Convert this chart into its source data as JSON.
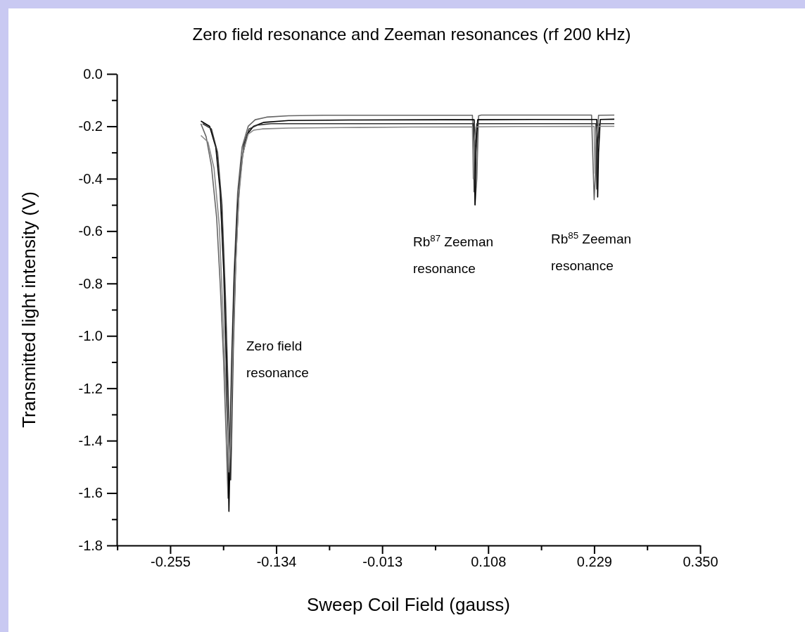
{
  "chart_data": {
    "type": "line",
    "title": "Zero field resonance and Zeeman resonances (rf 200 kHz)",
    "xlabel": "Sweep Coil Field (gauss)",
    "ylabel": "Transmitted light intensity (V)",
    "xlim": [
      -0.316,
      0.35
    ],
    "ylim": [
      -1.8,
      0
    ],
    "xticks": [
      {
        "value": -0.3155,
        "label": null
      },
      {
        "value": -0.255,
        "label": "-0.255"
      },
      {
        "value": -0.1945,
        "label": null
      },
      {
        "value": -0.134,
        "label": "-0.134"
      },
      {
        "value": -0.0735,
        "label": null
      },
      {
        "value": -0.013,
        "label": "-0.013"
      },
      {
        "value": 0.0475,
        "label": null
      },
      {
        "value": 0.108,
        "label": "0.108"
      },
      {
        "value": 0.1685,
        "label": null
      },
      {
        "value": 0.229,
        "label": "0.229"
      },
      {
        "value": 0.2895,
        "label": null
      },
      {
        "value": 0.35,
        "label": "0.350"
      }
    ],
    "yticks": [
      {
        "value": 0,
        "label": "0.0"
      },
      {
        "value": -0.1,
        "label": null
      },
      {
        "value": -0.2,
        "label": "-0.2"
      },
      {
        "value": -0.3,
        "label": null
      },
      {
        "value": -0.4,
        "label": "-0.4"
      },
      {
        "value": -0.5,
        "label": null
      },
      {
        "value": -0.6,
        "label": "-0.6"
      },
      {
        "value": -0.7,
        "label": null
      },
      {
        "value": -0.8,
        "label": "-0.8"
      },
      {
        "value": -0.9,
        "label": null
      },
      {
        "value": -1.0,
        "label": "-1.0"
      },
      {
        "value": -1.1,
        "label": null
      },
      {
        "value": -1.2,
        "label": "-1.2"
      },
      {
        "value": -1.3,
        "label": null
      },
      {
        "value": -1.4,
        "label": "-1.4"
      },
      {
        "value": -1.5,
        "label": null
      },
      {
        "value": -1.6,
        "label": "-1.6"
      },
      {
        "value": -1.7,
        "label": null
      },
      {
        "value": -1.8,
        "label": "-1.8"
      }
    ],
    "grid": false,
    "marker": "none",
    "line_style": "solid",
    "series": [
      {
        "color": "#666666",
        "x": [
          -0.22,
          -0.214,
          -0.208,
          -0.202,
          -0.198,
          -0.194,
          -0.191,
          -0.189,
          -0.187,
          -0.185,
          -0.182,
          -0.178,
          -0.173,
          -0.166,
          -0.158,
          -0.145,
          -0.12,
          -0.08,
          0.0,
          0.09,
          0.093,
          0.095,
          0.097,
          0.1,
          0.15,
          0.226,
          0.229,
          0.231,
          0.234,
          0.252
        ],
        "values": [
          -0.19,
          -0.24,
          -0.35,
          -0.55,
          -0.8,
          -1.1,
          -1.4,
          -1.62,
          -1.45,
          -1.1,
          -0.75,
          -0.45,
          -0.28,
          -0.2,
          -0.175,
          -0.165,
          -0.16,
          -0.158,
          -0.158,
          -0.158,
          -0.5,
          -0.4,
          -0.16,
          -0.157,
          -0.157,
          -0.157,
          -0.48,
          -0.35,
          -0.158,
          -0.157
        ]
      },
      {
        "color": "#000000",
        "x": [
          -0.22,
          -0.21,
          -0.203,
          -0.198,
          -0.194,
          -0.191,
          -0.189,
          -0.188,
          -0.187,
          -0.185,
          -0.182,
          -0.178,
          -0.173,
          -0.167,
          -0.16,
          -0.148,
          -0.12,
          -0.05,
          0.06,
          0.092,
          0.093,
          0.094,
          0.096,
          0.16,
          0.232,
          0.233,
          0.234,
          0.236,
          0.252
        ],
        "values": [
          -0.18,
          -0.2,
          -0.28,
          -0.45,
          -0.75,
          -1.1,
          -1.45,
          -1.67,
          -1.5,
          -1.15,
          -0.8,
          -0.5,
          -0.32,
          -0.23,
          -0.2,
          -0.185,
          -0.178,
          -0.176,
          -0.175,
          -0.175,
          -0.5,
          -0.3,
          -0.175,
          -0.174,
          -0.174,
          -0.47,
          -0.3,
          -0.174,
          -0.173
        ]
      },
      {
        "color": "#333333",
        "x": [
          -0.218,
          -0.208,
          -0.201,
          -0.196,
          -0.192,
          -0.189,
          -0.187,
          -0.186,
          -0.185,
          -0.183,
          -0.18,
          -0.176,
          -0.171,
          -0.165,
          -0.155,
          -0.14,
          -0.1,
          0.0,
          0.091,
          0.092,
          0.093,
          0.095,
          0.15,
          0.231,
          0.232,
          0.233,
          0.235,
          0.252
        ],
        "values": [
          -0.19,
          -0.21,
          -0.3,
          -0.5,
          -0.85,
          -1.2,
          -1.45,
          -1.55,
          -1.4,
          -1.05,
          -0.7,
          -0.42,
          -0.27,
          -0.21,
          -0.195,
          -0.19,
          -0.19,
          -0.19,
          -0.19,
          -0.45,
          -0.28,
          -0.19,
          -0.19,
          -0.19,
          -0.44,
          -0.27,
          -0.19,
          -0.19
        ]
      },
      {
        "color": "#888888",
        "x": [
          -0.22,
          -0.212,
          -0.205,
          -0.199,
          -0.195,
          -0.191,
          -0.188,
          -0.186,
          -0.184,
          -0.181,
          -0.177,
          -0.172,
          -0.166,
          -0.16,
          -0.15,
          -0.12,
          -0.06,
          0.02,
          0.09,
          0.091,
          0.092,
          0.094,
          0.14,
          0.229,
          0.23,
          0.231,
          0.233,
          0.252
        ],
        "values": [
          -0.235,
          -0.26,
          -0.36,
          -0.58,
          -0.9,
          -1.25,
          -1.52,
          -1.4,
          -1.1,
          -0.78,
          -0.48,
          -0.3,
          -0.23,
          -0.215,
          -0.21,
          -0.207,
          -0.205,
          -0.203,
          -0.202,
          -0.4,
          -0.26,
          -0.202,
          -0.201,
          -0.2,
          -0.38,
          -0.25,
          -0.2,
          -0.2
        ]
      }
    ],
    "annotations": [
      "Zero field resonance",
      "Rb$^{87}$ Zeeman resonance",
      "Rb$^{85}$ Zeeman resonance"
    ]
  }
}
